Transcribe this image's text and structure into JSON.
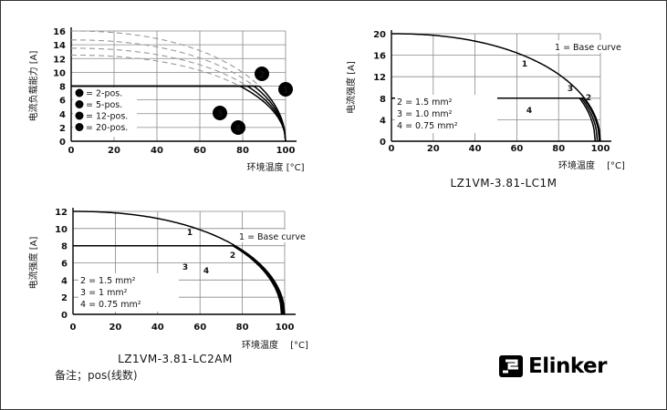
{
  "chart_data": [
    {
      "type": "line",
      "id": "chart1",
      "title": "",
      "xlabel": "环境温度 [°C]",
      "ylabel": "电流负载能力 [A]",
      "xlim": [
        0,
        100
      ],
      "ylim": [
        0,
        16
      ],
      "xticks": [
        "0",
        "20",
        "40",
        "60",
        "80",
        "100"
      ],
      "yticks": [
        "0",
        "2",
        "4",
        "6",
        "8",
        "10",
        "12",
        "14",
        "16"
      ],
      "grid": true,
      "legend": {
        "position": "left",
        "entries": [
          {
            "marker": "1",
            "label": "= 2-pos."
          },
          {
            "marker": "2",
            "label": "= 5-pos."
          },
          {
            "marker": "3",
            "label": "= 12-pos."
          },
          {
            "marker": "4",
            "label": "= 20-pos."
          }
        ]
      },
      "series": [
        {
          "name": "1",
          "style": "derated",
          "x": [
            0,
            100
          ],
          "Imax": 16,
          "Tmax": 100
        },
        {
          "name": "2",
          "style": "derated",
          "Imax": 14.7,
          "Tmax": 100
        },
        {
          "name": "3",
          "style": "derated",
          "Imax": 13.5,
          "Tmax": 100
        },
        {
          "name": "4",
          "style": "derated",
          "Imax": 12.5,
          "Tmax": 100
        }
      ],
      "limit": 8
    },
    {
      "type": "line",
      "id": "chart2",
      "title": "LZ1VM-3.81-LC1M",
      "xlabel": "环境温度",
      "xunit": "[°C]",
      "ylabel": "电流强度 [A]",
      "xlim": [
        0,
        100
      ],
      "ylim": [
        0,
        20
      ],
      "xticks": [
        "0",
        "20",
        "40",
        "60",
        "80",
        "100"
      ],
      "yticks": [
        "0",
        "4",
        "8",
        "12",
        "16",
        "20"
      ],
      "grid": true,
      "legend": {
        "position": "top-right",
        "text": "1 = Base curve"
      },
      "annotation_lines": [
        "2 = 1.5 mm²",
        "3 = 1.0 mm²",
        "4 = 0.75 mm²"
      ],
      "series": [
        {
          "name": "1",
          "Imax": 20,
          "Tmax": 100
        },
        {
          "name": "2",
          "Imax": 20,
          "Tmax": 99.5,
          "limit": 8
        },
        {
          "name": "3",
          "Imax": 20,
          "Tmax": 98.5,
          "limit": 8
        },
        {
          "name": "4",
          "Imax": 20,
          "Tmax": 97.5,
          "limit": 8
        }
      ]
    },
    {
      "type": "line",
      "id": "chart3",
      "title": "LZ1VM-3.81-LC2AM",
      "xlabel": "环境温度",
      "xunit": "[°C]",
      "ylabel": "电流强度 [A]",
      "xlim": [
        0,
        100
      ],
      "ylim": [
        0,
        12
      ],
      "xticks": [
        "0",
        "20",
        "40",
        "60",
        "80",
        "100"
      ],
      "yticks": [
        "0",
        "2",
        "4",
        "6",
        "8",
        "10",
        "12"
      ],
      "grid": true,
      "legend": {
        "position": "top-right",
        "text": "1 = Base curve"
      },
      "annotation_lines": [
        "2 = 1.5 mm²",
        "3 = 1 mm²",
        "4 = 0.75 mm²"
      ],
      "series": [
        {
          "name": "1",
          "Imax": 12,
          "Tmax": 100
        },
        {
          "name": "2",
          "Imax": 12,
          "Tmax": 99.5,
          "limit": 8
        },
        {
          "name": "3",
          "Imax": 12,
          "Tmax": 99,
          "limit": 8
        },
        {
          "name": "4",
          "Imax": 12,
          "Tmax": 98.5,
          "limit": 8
        }
      ]
    }
  ],
  "note": "备注；pos(线数)",
  "logo": {
    "text": "Elinker"
  }
}
